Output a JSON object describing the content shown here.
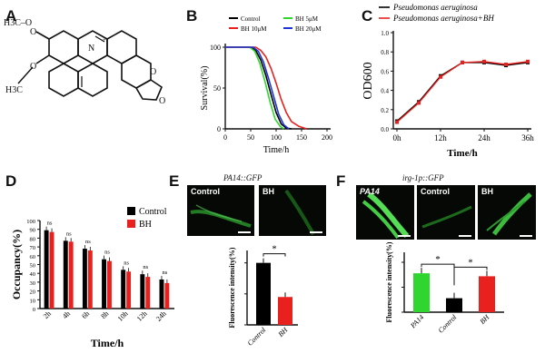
{
  "panels": {
    "A": {
      "letter": "A",
      "substituent_top": "H3C–O",
      "substituent_bottom": "H3C"
    },
    "B": {
      "letter": "B"
    },
    "C": {
      "letter": "C"
    },
    "D": {
      "letter": "D"
    },
    "E": {
      "letter": "E",
      "caption": "PA14::GFP",
      "images": [
        "Control",
        "BH"
      ]
    },
    "F": {
      "letter": "F",
      "caption": "irg-1p::GFP",
      "images": [
        "PA14",
        "Control",
        "BH"
      ]
    }
  },
  "colors": {
    "black": "#000000",
    "red": "#e8211e",
    "green": "#2fd62f",
    "blue": "#1f35d8",
    "pink": "#f0a0a0"
  },
  "chart_data": [
    {
      "id": "B",
      "type": "line",
      "title": "",
      "xlabel": "Time/h",
      "ylabel": "Survival(%)",
      "xlim": [
        0,
        200
      ],
      "ylim": [
        0,
        100
      ],
      "xticks": [
        0,
        50,
        100,
        150,
        200
      ],
      "yticks": [
        0,
        50,
        100
      ],
      "legend_position": "top",
      "series": [
        {
          "name": "Control",
          "color": "black",
          "x": [
            0,
            50,
            60,
            70,
            80,
            90,
            100,
            110,
            120,
            130
          ],
          "y": [
            100,
            100,
            96,
            84,
            65,
            42,
            20,
            6,
            1,
            0
          ]
        },
        {
          "name": "BH 5μM",
          "color": "green",
          "x": [
            0,
            48,
            58,
            68,
            78,
            88,
            98,
            108,
            115
          ],
          "y": [
            100,
            100,
            95,
            80,
            58,
            33,
            12,
            3,
            0
          ]
        },
        {
          "name": "BH 10μM",
          "color": "red",
          "x": [
            0,
            60,
            70,
            80,
            90,
            100,
            110,
            120,
            130,
            145,
            160
          ],
          "y": [
            100,
            100,
            96,
            88,
            74,
            56,
            36,
            20,
            9,
            3,
            0
          ]
        },
        {
          "name": "BH 20μM",
          "color": "blue",
          "x": [
            0,
            55,
            65,
            75,
            85,
            95,
            105,
            115,
            125
          ],
          "y": [
            100,
            100,
            95,
            82,
            62,
            40,
            18,
            5,
            0
          ]
        }
      ]
    },
    {
      "id": "C",
      "type": "line",
      "title": "",
      "xlabel": "Time/h",
      "ylabel": "OD600",
      "ylim": [
        0,
        1.0
      ],
      "categories": [
        "0h",
        "12h",
        "24h",
        "36h"
      ],
      "yticks": [
        0.0,
        0.2,
        0.4,
        0.6,
        0.8,
        1.0
      ],
      "legend_position": "top",
      "series": [
        {
          "name": "Pseudomonas aeruginosa",
          "color": "black",
          "x": [
            0,
            6,
            12,
            18,
            24,
            30,
            36
          ],
          "y": [
            0.08,
            0.28,
            0.55,
            0.69,
            0.69,
            0.66,
            0.69
          ]
        },
        {
          "name": "Pseudomonas aeruginosa+BH",
          "color": "red",
          "x": [
            0,
            6,
            12,
            18,
            24,
            30,
            36
          ],
          "y": [
            0.07,
            0.27,
            0.54,
            0.69,
            0.7,
            0.67,
            0.7
          ]
        }
      ]
    },
    {
      "id": "D",
      "type": "bar",
      "title": "",
      "xlabel": "Time/h",
      "ylabel": "Occupancy(%)",
      "ylim": [
        0,
        100
      ],
      "yticks": [
        0,
        10,
        20,
        30,
        40,
        50,
        60,
        70,
        80,
        90,
        100
      ],
      "categories": [
        "2h",
        "4h",
        "6h",
        "8h",
        "10h",
        "12h",
        "24h"
      ],
      "annotations": [
        "ns",
        "ns",
        "ns",
        "ns",
        "ns",
        "ns",
        "ns"
      ],
      "legend_position": "right",
      "series": [
        {
          "name": "Control",
          "color": "black",
          "values": [
            89,
            77,
            68,
            56,
            44,
            39,
            33
          ]
        },
        {
          "name": "BH",
          "color": "red",
          "values": [
            87,
            76,
            66,
            54,
            42,
            36,
            29
          ]
        }
      ]
    },
    {
      "id": "E",
      "type": "bar",
      "title": "",
      "ylabel": "Fluorescence intensity(%)",
      "ylim": [
        0,
        120
      ],
      "categories": [
        "Control",
        "BH"
      ],
      "colors": [
        "black",
        "red"
      ],
      "values": [
        100,
        45
      ],
      "annotations": [
        "*"
      ]
    },
    {
      "id": "F",
      "type": "bar",
      "title": "",
      "ylabel": "Fluorescence intensity(%)",
      "ylim": [
        0,
        120
      ],
      "categories": [
        "PA14",
        "Control",
        "BH"
      ],
      "colors": [
        "green",
        "black",
        "red"
      ],
      "values": [
        78,
        28,
        72
      ],
      "annotations": [
        "*",
        "*"
      ]
    }
  ]
}
